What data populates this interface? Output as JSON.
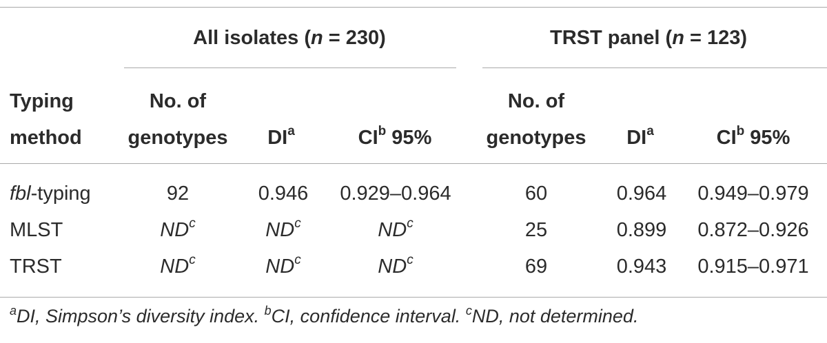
{
  "groups": {
    "all": {
      "label": "All isolates (",
      "n": "n",
      "rest": " = 230)"
    },
    "trst": {
      "label": "TRST panel (",
      "n": "n",
      "rest": " = 123)"
    }
  },
  "headers": {
    "typing_line1": "Typing",
    "typing_line2": "method",
    "genotypes_line1": "No. of",
    "genotypes_line2": "genotypes",
    "di": "DI",
    "di_sup": "a",
    "ci": "CI",
    "ci_sup": "b",
    "ci_rest": " 95%"
  },
  "rows": [
    {
      "method_italic": "fbl",
      "method_rest": "-typing",
      "all_genotypes": "92",
      "all_di": "0.946",
      "all_ci": "0.929–0.964",
      "trst_genotypes": "60",
      "trst_di": "0.964",
      "trst_ci": "0.949–0.979"
    },
    {
      "method_italic": "",
      "method_rest": "MLST",
      "all_genotypes": "ND",
      "all_di": "ND",
      "all_ci": "ND",
      "trst_genotypes": "25",
      "trst_di": "0.899",
      "trst_ci": "0.872–0.926"
    },
    {
      "method_italic": "",
      "method_rest": "TRST",
      "all_genotypes": "ND",
      "all_di": "ND",
      "all_ci": "ND",
      "trst_genotypes": "69",
      "trst_di": "0.943",
      "trst_ci": "0.915–0.971"
    }
  ],
  "nd_sup": "c",
  "footnote": {
    "a_sup": "a",
    "a_text": "DI, Simpson’s diversity index. ",
    "b_sup": "b",
    "b_text": "CI, confidence interval. ",
    "c_sup": "c",
    "c_text": "ND, not determined."
  }
}
